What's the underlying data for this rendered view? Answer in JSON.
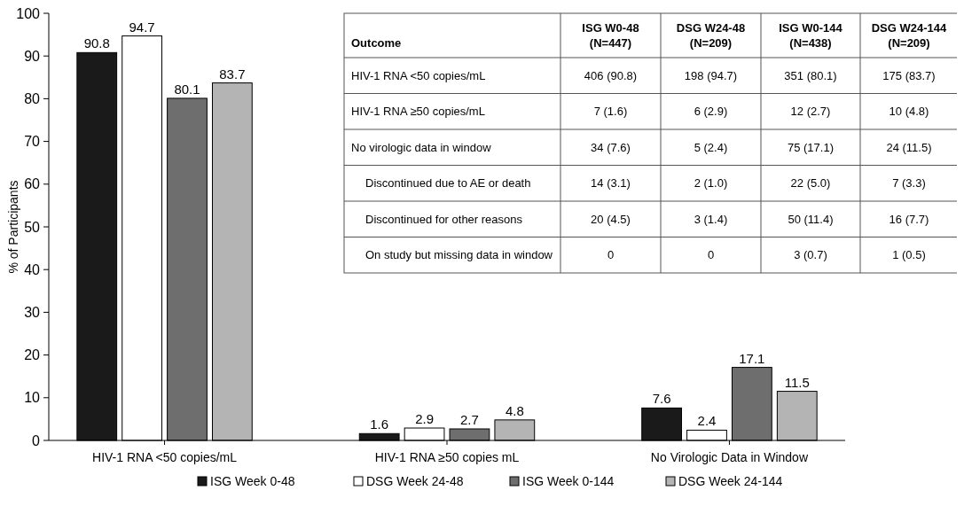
{
  "chart_data": [
    {
      "type": "bar",
      "ylabel": "% of Participants",
      "categories": [
        "HIV-1 RNA <50 copies/mL",
        "HIV-1 RNA ≥50 copies mL",
        "No Virologic Data in Window"
      ],
      "series": [
        {
          "name": "ISG Week 0-48",
          "color": "#1a1a1a",
          "values": [
            90.8,
            1.6,
            7.6
          ]
        },
        {
          "name": "DSG Week 24-48",
          "color": "#ffffff",
          "values": [
            94.7,
            2.9,
            2.4
          ]
        },
        {
          "name": "ISG Week 0-144",
          "color": "#6e6e6e",
          "values": [
            80.1,
            2.7,
            17.1
          ]
        },
        {
          "name": "DSG Week 24-144",
          "color": "#b4b4b4",
          "values": [
            83.7,
            4.8,
            11.5
          ]
        }
      ],
      "ylim": [
        0,
        100
      ],
      "yticks": [
        0,
        10,
        20,
        30,
        40,
        50,
        60,
        70,
        80,
        90,
        100
      ],
      "data_labels": true,
      "legend": "bottom",
      "grid": false
    },
    {
      "type": "other",
      "categories": [
        "Outcome",
        "ISG W0-48\n(N=447)",
        "DSG W24-48\n(N=209)",
        "ISG W0-144\n(N=438)",
        "DSG W24-144\n(N=209)"
      ],
      "cell_labels": [
        [
          "HIV-1 RNA <50 copies/mL",
          "406 (90.8)",
          "198 (94.7)",
          "351 (80.1)",
          "175 (83.7)"
        ],
        [
          "HIV-1 RNA ≥50 copies/mL",
          "7 (1.6)",
          "6 (2.9)",
          "12 (2.7)",
          "10 (4.8)"
        ],
        [
          "No virologic data in window",
          "34 (7.6)",
          "5 (2.4)",
          "75 (17.1)",
          "24 (11.5)"
        ],
        [
          "Discontinued due to AE or death",
          "14 (3.1)",
          "2 (1.0)",
          "22 (5.0)",
          "7 (3.3)"
        ],
        [
          "Discontinued for other reasons",
          "20 (4.5)",
          "3 (1.4)",
          "50 (11.4)",
          "16 (7.7)"
        ],
        [
          "On study but missing data in window",
          "0",
          "0",
          "3 (0.7)",
          "1 (0.5)"
        ]
      ]
    }
  ]
}
